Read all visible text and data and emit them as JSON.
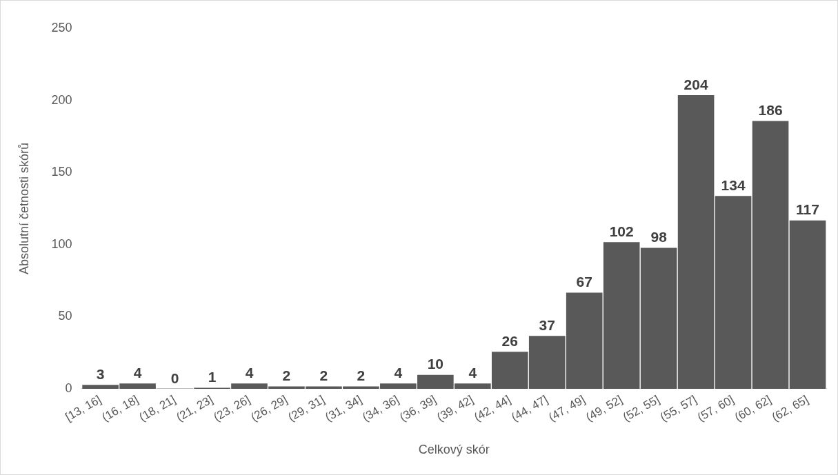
{
  "chart_data": {
    "type": "bar",
    "xlabel": "Celkový skór",
    "ylabel": "Absolutní četnosti skórů",
    "categories": [
      "[13, 16]",
      "(16, 18]",
      "(18, 21]",
      "(21, 23]",
      "(23, 26]",
      "(26, 29]",
      "(29, 31]",
      "(31, 34]",
      "(34, 36]",
      "(36, 39]",
      "(39, 42]",
      "(42, 44]",
      "(44, 47]",
      "(47, 49]",
      "(49, 52]",
      "(52, 55]",
      "(55, 57]",
      "(57, 60]",
      "(60, 62]",
      "(62, 65]"
    ],
    "values": [
      3,
      4,
      0,
      1,
      4,
      2,
      2,
      2,
      4,
      10,
      4,
      26,
      37,
      67,
      102,
      98,
      204,
      134,
      186,
      117
    ],
    "color": "#595959",
    "ylim": [
      0,
      250
    ],
    "yticks": [
      0,
      50,
      100,
      150,
      200,
      250
    ],
    "grid": false,
    "legend": false,
    "data_labels": true
  }
}
